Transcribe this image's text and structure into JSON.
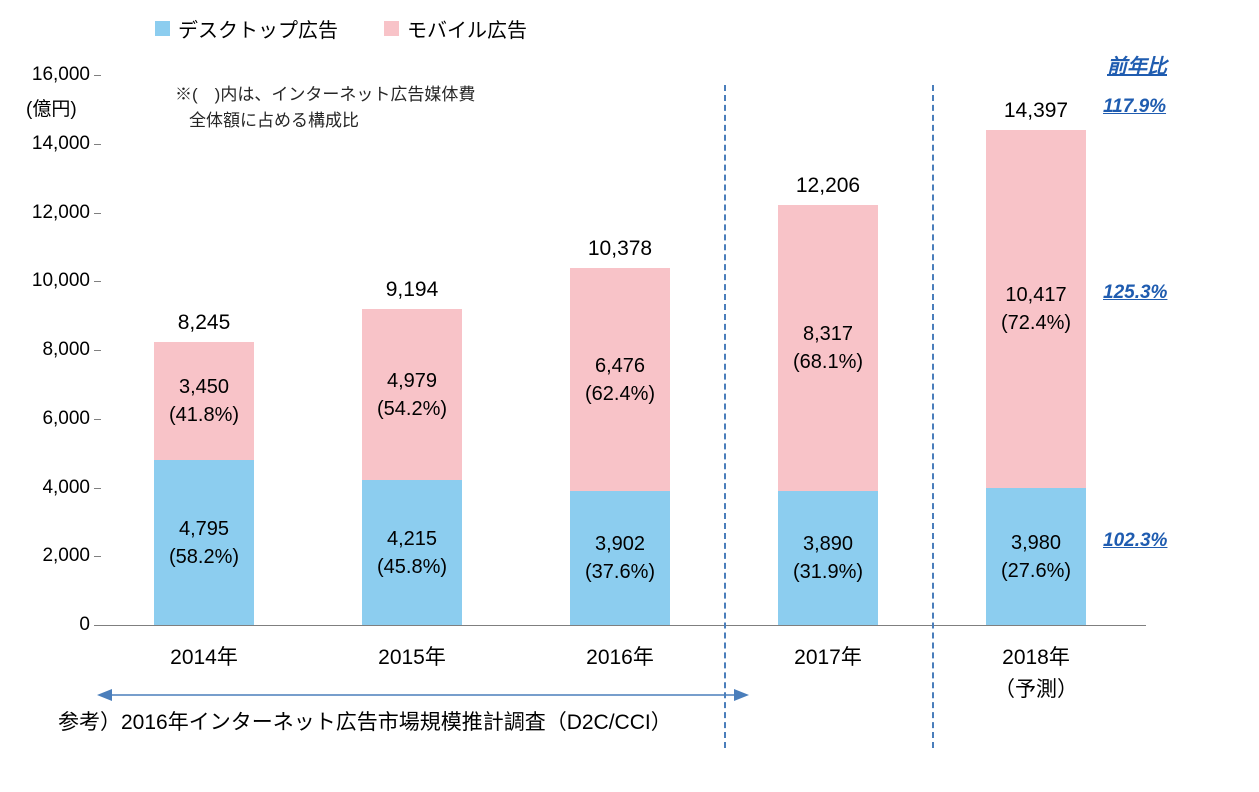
{
  "legend": [
    {
      "label": "デスクトップ広告",
      "color": "#8ccdef"
    },
    {
      "label": "モバイル広告",
      "color": "#f8c3c8"
    }
  ],
  "note_line1": "※(　)内は、インターネット広告媒体費",
  "note_line2": "全体額に占める構成比",
  "y_unit": "(億円)",
  "yoy_header": "前年比",
  "bottom_note": "参考）2016年インターネット広告市場規模推計調査（D2C/CCI）",
  "chart_data": {
    "type": "bar",
    "stacked": true,
    "title": "",
    "xlabel": "",
    "ylabel": "(億円)",
    "ylim": [
      0,
      16000
    ],
    "ytick_step": 2000,
    "grid": false,
    "legend_position": "top",
    "categories": [
      "2014年",
      "2015年",
      "2016年",
      "2017年",
      "2018年"
    ],
    "category_sublabels": [
      "",
      "",
      "",
      "",
      "（予測）"
    ],
    "series": [
      {
        "name": "デスクトップ広告",
        "color": "#8ccdef",
        "values": [
          4795,
          4215,
          3902,
          3890,
          3980
        ],
        "shares": [
          "58.2%",
          "45.8%",
          "37.6%",
          "31.9%",
          "27.6%"
        ]
      },
      {
        "name": "モバイル広告",
        "color": "#f8c3c8",
        "values": [
          3450,
          4979,
          6476,
          8317,
          10417
        ],
        "shares": [
          "41.8%",
          "54.2%",
          "62.4%",
          "68.1%",
          "72.4%"
        ]
      }
    ],
    "totals": [
      8245,
      9194,
      10378,
      12206,
      14397
    ],
    "yoy": {
      "total": "117.9%",
      "mobile": "125.3%",
      "desktop": "102.3%"
    },
    "divider_boundaries": [
      3,
      4
    ],
    "divider_color": "#4a7ebb",
    "yoy_color": "#1f5cb0"
  }
}
